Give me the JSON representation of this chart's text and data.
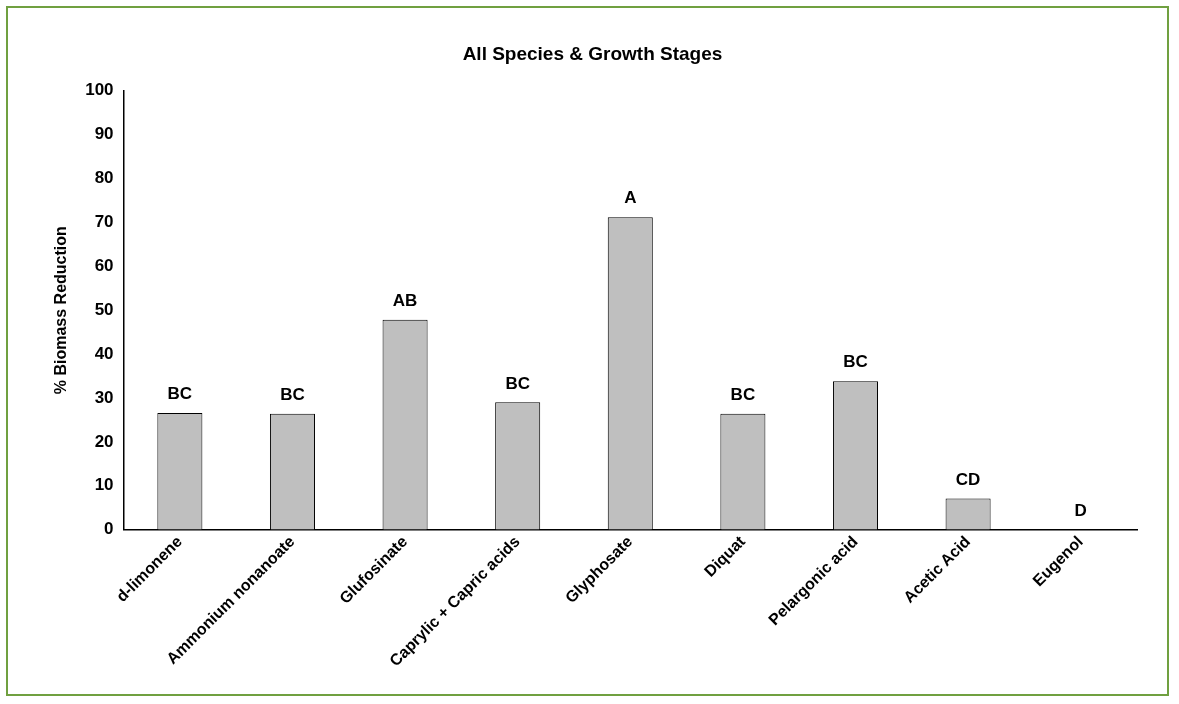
{
  "chart_data": {
    "type": "bar",
    "title": "All Species & Growth Stages",
    "ylabel": "% Biomass Reduction",
    "categories": [
      "d-limonene",
      "Ammonium nonanoate",
      "Glufosinate",
      "Caprylic + Capric acids",
      "Glyphosate",
      "Diquat",
      "Pelargonic acid",
      "Acetic Acid",
      "Eugenol"
    ],
    "values": [
      26.6,
      26.4,
      47.8,
      29.0,
      71.2,
      26.4,
      33.8,
      7.1,
      0
    ],
    "color": "#bfbfbf",
    "ylim": [
      0,
      100
    ],
    "yticks": [
      0,
      10,
      20,
      30,
      40,
      50,
      60,
      70,
      80,
      90,
      100
    ],
    "grid": false,
    "legend": false,
    "annotations": [
      {
        "text": "BC",
        "x": "d-limonene",
        "y": 26.6
      },
      {
        "text": "BC",
        "x": "Ammonium nonanoate",
        "y": 26.4
      },
      {
        "text": "AB",
        "x": "Glufosinate",
        "y": 47.8
      },
      {
        "text": "BC",
        "x": "Caprylic + Capric acids",
        "y": 29.0
      },
      {
        "text": "A",
        "x": "Glyphosate",
        "y": 71.2
      },
      {
        "text": "BC",
        "x": "Diquat",
        "y": 26.4
      },
      {
        "text": "BC",
        "x": "Pelargonic acid",
        "y": 33.8
      },
      {
        "text": "CD",
        "x": "Acetic Acid",
        "y": 7.1
      },
      {
        "text": "D",
        "x": "Eugenol",
        "y": 0
      }
    ]
  }
}
